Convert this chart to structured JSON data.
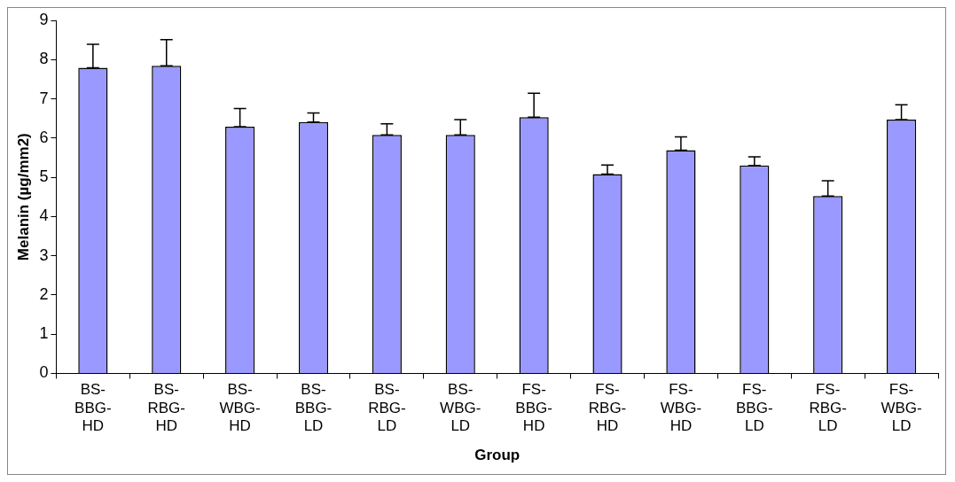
{
  "chart_data": {
    "type": "bar",
    "xlabel": "Group",
    "ylabel": "Melanin (µg/mm2)",
    "categories": [
      "BS-BBG-HD",
      "BS-RBG-HD",
      "BS-WBG-HD",
      "BS-BBG-LD",
      "BS-RBG-LD",
      "BS-WBG-LD",
      "FS-BBG-HD",
      "FS-RBG-HD",
      "FS-WBG-HD",
      "FS-BBG-LD",
      "FS-RBG-LD",
      "FS-WBG-LD"
    ],
    "series": [
      {
        "color": "#9999ff",
        "values": [
          7.79,
          7.84,
          6.29,
          6.41,
          6.08,
          6.08,
          6.53,
          5.08,
          5.69,
          5.3,
          4.52,
          6.47
        ],
        "errors": [
          [
            7.79,
            8.39
          ],
          [
            7.84,
            8.51
          ],
          [
            6.29,
            6.75
          ],
          [
            6.41,
            6.64
          ],
          [
            6.08,
            6.36
          ],
          [
            6.08,
            6.47
          ],
          [
            6.53,
            7.14
          ],
          [
            5.08,
            5.31
          ],
          [
            5.69,
            6.03
          ],
          [
            5.3,
            5.52
          ],
          [
            4.52,
            4.91
          ],
          [
            6.47,
            6.85
          ]
        ]
      }
    ],
    "ylim": [
      0,
      9
    ],
    "yticks": [
      0,
      1,
      2,
      3,
      4,
      5,
      6,
      7,
      8,
      9
    ],
    "grid": false,
    "legend": false
  }
}
